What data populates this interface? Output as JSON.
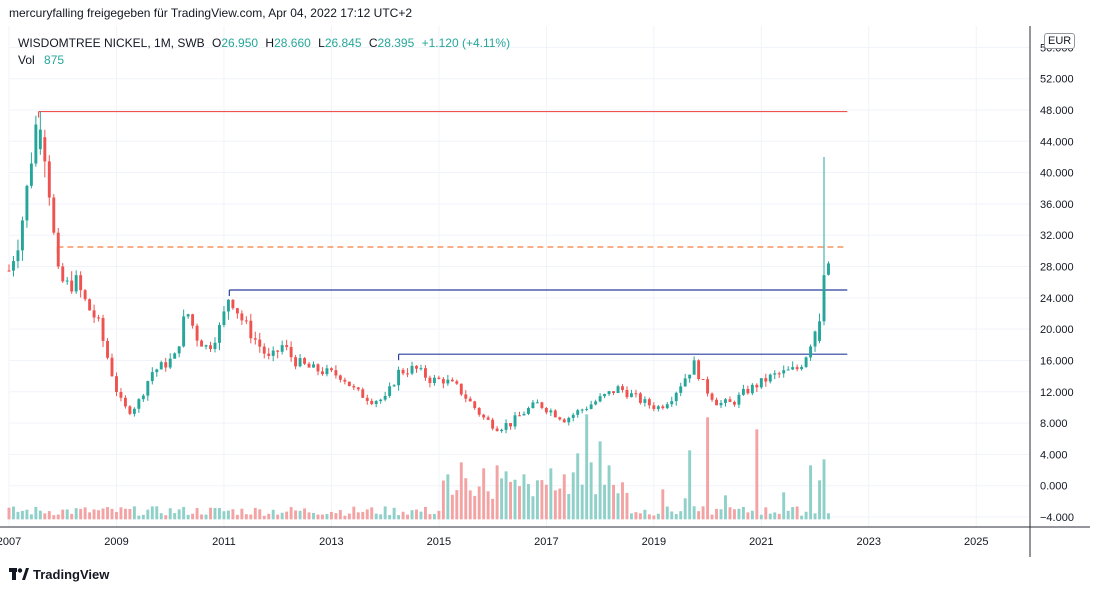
{
  "header": {
    "publish_text": "mercuryfalling freigegeben für TradingView.com, Apr 04, 2022 17:12 UTC+2"
  },
  "legend": {
    "symbol": "WISDOMTREE NICKEL, 1M, SWB",
    "open_label": "O",
    "open": "26.950",
    "high_label": "H",
    "high": "28.660",
    "low_label": "L",
    "low": "26.845",
    "close_label": "C",
    "close": "28.395",
    "change": "+1.120 (+4.11%)",
    "volume_label": "Vol",
    "volume": "875"
  },
  "price_scale": {
    "currency": "EUR"
  },
  "footer": {
    "brand": "TradingView",
    "logo_icon": "tradingview-logo-icon"
  },
  "colors": {
    "up": "#26a69a",
    "down": "#ef5350",
    "vol_up": "#8fd0c8",
    "vol_down": "#f3a3a3",
    "red_line": "#ef5350",
    "dashed_line": "#f57f3c",
    "blue_line": "#2a3f9d"
  },
  "chart_data": {
    "type": "candlestick",
    "title": "",
    "xlabel": "",
    "ylabel": "",
    "ylim": [
      -4,
      56
    ],
    "xlim": [
      2007.0,
      2026.0
    ],
    "grid": true,
    "y_ticks": [
      "56.000",
      "52.000",
      "48.000",
      "44.000",
      "40.000",
      "36.000",
      "32.000",
      "28.000",
      "24.000",
      "20.000",
      "16.000",
      "12.000",
      "8.000",
      "4.000",
      "0.000",
      "−4.000"
    ],
    "x_ticks": [
      "2007",
      "2009",
      "2011",
      "2013",
      "2015",
      "2017",
      "2019",
      "2021",
      "2023",
      "2025"
    ],
    "anchors": [
      [
        2007.0,
        27.5
      ],
      [
        2007.2,
        32.0
      ],
      [
        2007.35,
        38.5
      ],
      [
        2007.45,
        44.0
      ],
      [
        2007.55,
        47.8
      ],
      [
        2007.7,
        41.5
      ],
      [
        2007.9,
        27.0
      ],
      [
        2008.05,
        25.5
      ],
      [
        2008.25,
        26.0
      ],
      [
        2008.45,
        23.0
      ],
      [
        2008.65,
        21.0
      ],
      [
        2008.85,
        16.0
      ],
      [
        2009.05,
        11.0
      ],
      [
        2009.2,
        9.5
      ],
      [
        2009.4,
        10.5
      ],
      [
        2009.65,
        14.5
      ],
      [
        2009.9,
        15.5
      ],
      [
        2010.1,
        16.5
      ],
      [
        2010.3,
        22.5
      ],
      [
        2010.5,
        19.0
      ],
      [
        2010.7,
        17.5
      ],
      [
        2010.95,
        20.5
      ],
      [
        2011.1,
        24.5
      ],
      [
        2011.35,
        21.0
      ],
      [
        2011.6,
        18.5
      ],
      [
        2011.85,
        16.0
      ],
      [
        2012.1,
        18.0
      ],
      [
        2012.3,
        16.0
      ],
      [
        2012.6,
        15.0
      ],
      [
        2012.9,
        14.5
      ],
      [
        2013.2,
        14.0
      ],
      [
        2013.45,
        12.0
      ],
      [
        2013.75,
        11.0
      ],
      [
        2014.0,
        11.0
      ],
      [
        2014.25,
        14.5
      ],
      [
        2014.55,
        15.0
      ],
      [
        2014.85,
        13.5
      ],
      [
        2015.1,
        13.5
      ],
      [
        2015.35,
        12.5
      ],
      [
        2015.6,
        10.5
      ],
      [
        2015.85,
        8.5
      ],
      [
        2016.1,
        7.5
      ],
      [
        2016.35,
        8.0
      ],
      [
        2016.6,
        9.5
      ],
      [
        2016.85,
        10.5
      ],
      [
        2017.1,
        9.5
      ],
      [
        2017.35,
        8.5
      ],
      [
        2017.6,
        9.5
      ],
      [
        2017.85,
        10.5
      ],
      [
        2018.1,
        11.5
      ],
      [
        2018.35,
        12.5
      ],
      [
        2018.6,
        11.5
      ],
      [
        2018.85,
        10.5
      ],
      [
        2019.1,
        10.0
      ],
      [
        2019.35,
        11.5
      ],
      [
        2019.6,
        14.0
      ],
      [
        2019.75,
        15.5
      ],
      [
        2019.95,
        12.5
      ],
      [
        2020.2,
        10.5
      ],
      [
        2020.45,
        10.5
      ],
      [
        2020.7,
        12.0
      ],
      [
        2020.95,
        13.0
      ],
      [
        2021.2,
        14.0
      ],
      [
        2021.45,
        14.5
      ],
      [
        2021.7,
        15.0
      ],
      [
        2021.85,
        17.0
      ],
      [
        2022.0,
        20.0
      ],
      [
        2022.1,
        23.5
      ],
      [
        2022.17,
        26.9
      ],
      [
        2022.25,
        28.4
      ]
    ],
    "volume_note": "Volume histogram, relative scale on the same axis bottom",
    "volume_spikes": [
      [
        2015.2,
        7.5
      ],
      [
        2015.45,
        9.5
      ],
      [
        2015.8,
        8.5
      ],
      [
        2016.05,
        9.0
      ],
      [
        2016.25,
        8.0
      ],
      [
        2016.55,
        7.5
      ],
      [
        2016.85,
        6.5
      ],
      [
        2017.05,
        8.5
      ],
      [
        2017.3,
        7.5
      ],
      [
        2017.6,
        11.0
      ],
      [
        2017.75,
        17.5
      ],
      [
        2017.85,
        9.5
      ],
      [
        2018.0,
        13.0
      ],
      [
        2018.2,
        9.0
      ],
      [
        2019.2,
        5.0
      ],
      [
        2019.55,
        3.5
      ],
      [
        2019.7,
        11.5
      ],
      [
        2020.0,
        17.0
      ],
      [
        2020.35,
        4.0
      ],
      [
        2020.95,
        15.0
      ],
      [
        2021.45,
        4.5
      ],
      [
        2021.9,
        9.0
      ],
      [
        2022.05,
        6.5
      ],
      [
        2022.15,
        10.0
      ],
      [
        2022.25,
        1.0
      ]
    ],
    "horizontal_levels": [
      {
        "value": 47.8,
        "x_start": 2007.55,
        "x_end": 2022.6,
        "style": "solid",
        "color": "#ef5350"
      },
      {
        "value": 30.5,
        "x_start": 2007.9,
        "x_end": 2022.6,
        "style": "dashed",
        "color": "#f57f3c"
      },
      {
        "value": 25.0,
        "x_start": 2011.1,
        "x_end": 2022.6,
        "style": "solid",
        "color": "#2a3f9d"
      },
      {
        "value": 16.8,
        "x_start": 2014.25,
        "x_end": 2022.6,
        "style": "solid",
        "color": "#2a3f9d"
      }
    ],
    "spike_high": {
      "x": 2022.15,
      "value": 42.0
    }
  }
}
